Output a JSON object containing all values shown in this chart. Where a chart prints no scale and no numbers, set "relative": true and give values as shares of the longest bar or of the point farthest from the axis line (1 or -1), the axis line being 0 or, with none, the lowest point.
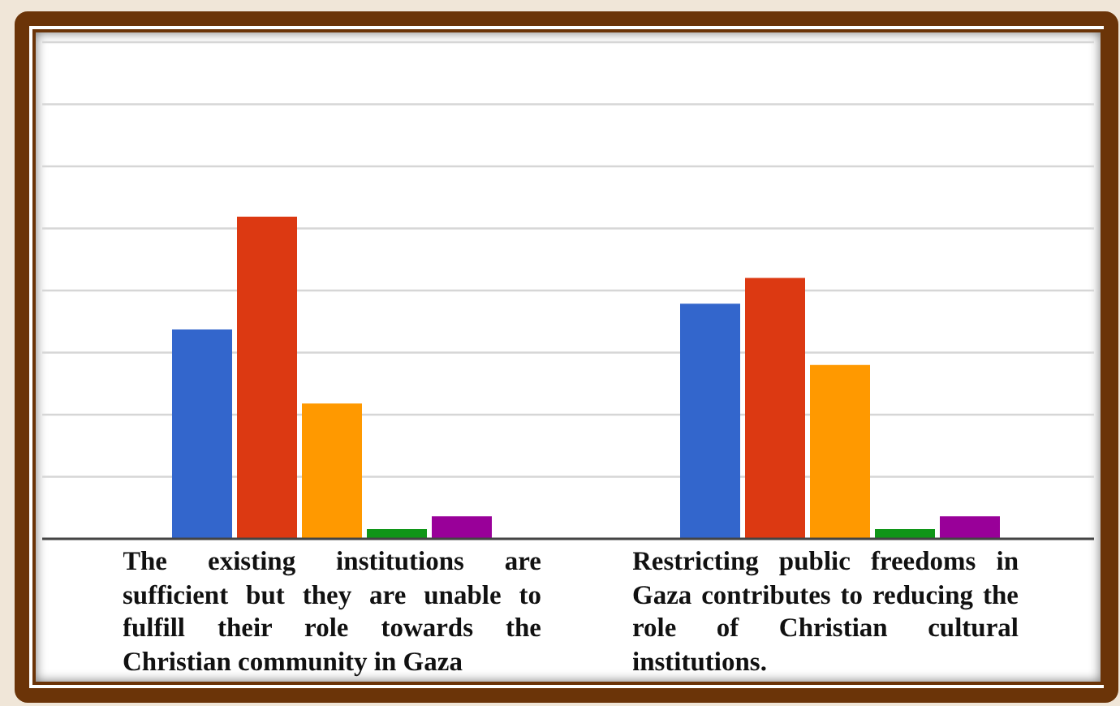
{
  "chart_data": {
    "type": "bar",
    "relative": true,
    "categories": [
      "The existing institutions are sufficient but they are unable to fulfill their role towards the Christian community in Gaza",
      "Restricting public freedoms in Gaza contributes to reducing the role of Christian cultural institutions."
    ],
    "series": [
      {
        "color": "#3366cc",
        "values": [
          0.65,
          0.73
        ]
      },
      {
        "color": "#dc3912",
        "values": [
          1,
          0.81
        ]
      },
      {
        "color": "#ff9900",
        "values": [
          0.42,
          0.54
        ]
      },
      {
        "color": "#109618",
        "values": [
          0.03,
          0.03
        ]
      },
      {
        "color": "#990099",
        "values": [
          0.07,
          0.07
        ]
      }
    ],
    "grid": "y"
  }
}
